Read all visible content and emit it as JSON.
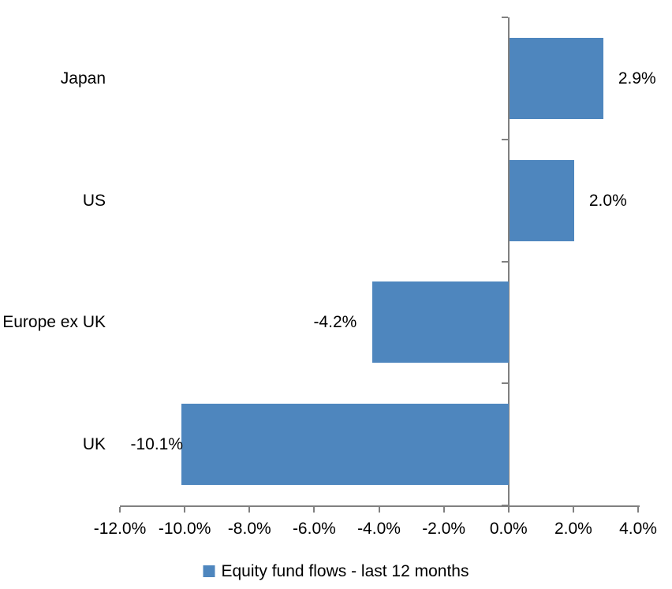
{
  "chart_data": {
    "type": "bar",
    "orientation": "horizontal",
    "title": "",
    "categories": [
      "Japan",
      "US",
      "Europe ex UK",
      "UK"
    ],
    "values": [
      2.9,
      2.0,
      -4.2,
      -10.1
    ],
    "data_labels": [
      "2.9%",
      "2.0%",
      "-4.2%",
      "-10.1%"
    ],
    "xlim": [
      -12,
      4
    ],
    "x_tick_values": [
      -12,
      -10,
      -8,
      -6,
      -4,
      -2,
      0,
      2,
      4
    ],
    "x_tick_labels": [
      "-12.0%",
      "-10.0%",
      "-8.0%",
      "-6.0%",
      "-4.0%",
      "-2.0%",
      "0.0%",
      "2.0%",
      "4.0%"
    ],
    "grid": "off",
    "legend_position": "bottom",
    "legend": [
      {
        "label": "Equity fund flows - last 12 months",
        "color": "#4E86BE"
      }
    ],
    "series_color": "#4E86BE",
    "axis_color": "#808080",
    "text_color": "#000000",
    "background_color": "#FFFFFF"
  }
}
